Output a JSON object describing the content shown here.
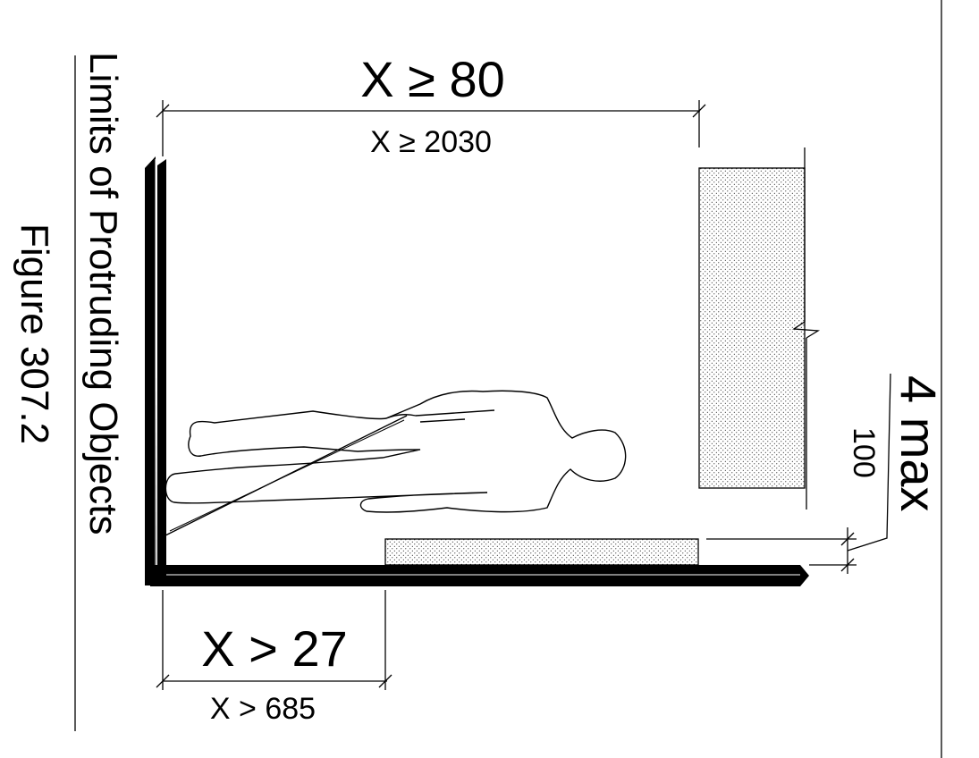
{
  "caption": {
    "figure_number": "Figure 307.2",
    "title": "Limits of Protruding Objects"
  },
  "dimensions": {
    "headroom_in": "X ≥ 80",
    "headroom_mm": "X ≥ 2030",
    "low_object_in": "X > 27",
    "low_object_mm": "X > 685",
    "protrusion_in": "4 max",
    "protrusion_mm": "100"
  },
  "colors": {
    "line": "#000000",
    "fill_pattern": "#000000"
  }
}
